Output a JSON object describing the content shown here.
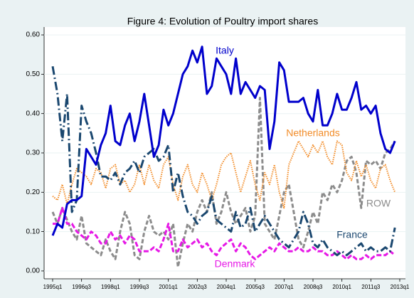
{
  "chart_data": {
    "type": "line",
    "title": "Figure 4: Evolution of Poultry import shares",
    "categories": [
      "1995q1",
      null,
      null,
      null,
      null,
      null,
      "1996q3",
      null,
      null,
      null,
      null,
      null,
      "1998q1",
      null,
      null,
      null,
      null,
      null,
      "1999q3",
      null,
      null,
      null,
      null,
      null,
      "2001q1",
      null,
      null,
      null,
      null,
      null,
      "2002q3",
      null,
      null,
      null,
      null,
      null,
      "2004q1",
      null,
      null,
      null,
      null,
      null,
      "2005q3",
      null,
      null,
      null,
      null,
      null,
      "2007q1",
      null,
      null,
      null,
      null,
      null,
      "2008q3",
      null,
      null,
      null,
      null,
      null,
      "2010q1",
      null,
      null,
      null,
      null,
      null,
      "2011q3",
      null,
      null,
      null,
      null,
      null,
      "2013q1"
    ],
    "series": [
      {
        "name": "Italy",
        "color": "#0000cc",
        "values": [
          0.09,
          0.12,
          0.11,
          0.17,
          0.18,
          0.18,
          0.19,
          0.31,
          0.29,
          0.27,
          0.32,
          0.35,
          0.42,
          0.33,
          0.32,
          0.37,
          0.4,
          0.33,
          0.38,
          0.45,
          0.37,
          0.29,
          0.32,
          0.41,
          0.37,
          0.4,
          0.45,
          0.5,
          0.52,
          0.56,
          0.53,
          0.57,
          0.45,
          0.47,
          0.54,
          0.52,
          0.5,
          0.45,
          0.54,
          0.45,
          0.48,
          0.46,
          0.44,
          0.47,
          0.46,
          0.31,
          0.38,
          0.53,
          0.51,
          0.43,
          0.43,
          0.43,
          0.44,
          0.4,
          0.38,
          0.46,
          0.37,
          0.37,
          0.4,
          0.45,
          0.41,
          0.41,
          0.44,
          0.48,
          0.41,
          0.42,
          0.4,
          0.42,
          0.35,
          0.31,
          0.3,
          0.33,
          null
        ]
      },
      {
        "name": "Netherlands",
        "color": "#f28c28",
        "values": [
          0.19,
          0.18,
          0.22,
          0.17,
          0.22,
          0.26,
          0.25,
          0.24,
          0.22,
          0.26,
          0.25,
          0.21,
          0.26,
          0.27,
          0.22,
          0.23,
          0.2,
          0.22,
          0.27,
          0.22,
          0.27,
          0.23,
          0.21,
          0.27,
          0.29,
          0.22,
          0.18,
          0.24,
          0.27,
          0.22,
          0.2,
          0.25,
          0.22,
          0.18,
          0.22,
          0.27,
          0.29,
          0.3,
          0.25,
          0.2,
          0.24,
          0.28,
          0.22,
          0.18,
          0.25,
          0.22,
          0.27,
          0.2,
          0.16,
          0.27,
          0.3,
          0.33,
          0.31,
          0.29,
          0.32,
          0.3,
          0.33,
          0.29,
          0.27,
          0.33,
          0.32,
          0.25,
          0.23,
          0.28,
          0.24,
          0.27,
          0.23,
          0.21,
          0.26,
          0.27,
          0.23,
          0.2,
          null
        ]
      },
      {
        "name": "ROW",
        "color": "#8c8c8c",
        "values": [
          0.15,
          0.12,
          0.16,
          0.13,
          0.1,
          0.08,
          0.14,
          0.07,
          0.06,
          0.05,
          0.04,
          0.08,
          0.05,
          0.03,
          0.1,
          0.15,
          0.12,
          0.04,
          0.03,
          0.1,
          0.14,
          0.1,
          0.09,
          0.1,
          0.08,
          0.12,
          0.01,
          0.07,
          0.12,
          0.1,
          0.15,
          0.18,
          0.15,
          0.2,
          0.12,
          0.15,
          0.2,
          0.15,
          0.12,
          0.14,
          0.16,
          0.1,
          0.14,
          0.44,
          0.12,
          0.1,
          0.08,
          0.14,
          0.2,
          0.22,
          0.15,
          0.08,
          0.06,
          0.1,
          0.15,
          0.12,
          0.2,
          0.18,
          0.22,
          0.2,
          0.23,
          0.28,
          0.29,
          0.25,
          0.16,
          0.28,
          0.27,
          0.28,
          0.26,
          0.3,
          0.31,
          0.33,
          null
        ]
      },
      {
        "name": "France",
        "color": "#1a476f",
        "values": [
          0.52,
          0.45,
          0.33,
          0.45,
          0.15,
          0.18,
          0.42,
          0.38,
          0.35,
          0.3,
          0.24,
          0.24,
          0.23,
          0.25,
          0.22,
          0.25,
          0.26,
          0.28,
          0.25,
          0.29,
          0.3,
          0.31,
          0.28,
          0.29,
          0.32,
          0.2,
          0.25,
          0.19,
          0.15,
          0.14,
          0.12,
          0.14,
          0.15,
          0.19,
          0.13,
          0.12,
          0.11,
          0.1,
          0.15,
          0.11,
          0.12,
          0.16,
          0.1,
          0.12,
          0.14,
          0.12,
          0.1,
          0.08,
          0.07,
          0.06,
          0.08,
          0.1,
          0.15,
          0.12,
          0.07,
          0.06,
          0.08,
          0.06,
          0.05,
          0.04,
          0.05,
          0.04,
          0.05,
          0.06,
          0.07,
          0.05,
          0.06,
          0.05,
          0.05,
          0.06,
          0.05,
          0.11,
          null
        ]
      },
      {
        "name": "Denmark",
        "color": "#e619e6",
        "values": [
          0.12,
          0.12,
          0.16,
          0.12,
          0.12,
          0.1,
          0.09,
          0.08,
          0.1,
          0.09,
          0.07,
          0.07,
          0.1,
          0.08,
          0.09,
          0.07,
          0.09,
          0.08,
          0.05,
          0.05,
          0.05,
          0.06,
          0.05,
          0.08,
          0.12,
          0.05,
          0.05,
          0.08,
          0.06,
          0.07,
          0.08,
          0.06,
          0.07,
          0.05,
          0.04,
          0.06,
          0.07,
          0.08,
          0.05,
          0.07,
          0.06,
          0.04,
          0.03,
          0.04,
          0.05,
          0.06,
          0.05,
          0.07,
          0.06,
          0.05,
          0.05,
          0.06,
          0.05,
          0.05,
          0.06,
          0.05,
          0.05,
          0.04,
          0.04,
          0.05,
          0.04,
          0.03,
          0.04,
          0.03,
          0.03,
          0.04,
          0.03,
          0.04,
          0.04,
          0.04,
          0.05,
          0.04,
          null
        ]
      }
    ],
    "ylim": [
      -0.02,
      0.62
    ],
    "yticks": [
      {
        "value": 0,
        "label": "0.00"
      },
      {
        "value": 0.1,
        "label": "0.10"
      },
      {
        "value": 0.2,
        "label": "0.20"
      },
      {
        "value": 0.3,
        "label": "0.30"
      },
      {
        "value": 0.4,
        "label": "0.40"
      },
      {
        "value": 0.5,
        "label": "0.50"
      },
      {
        "value": 0.6,
        "label": "0.60"
      }
    ],
    "grid": true
  }
}
